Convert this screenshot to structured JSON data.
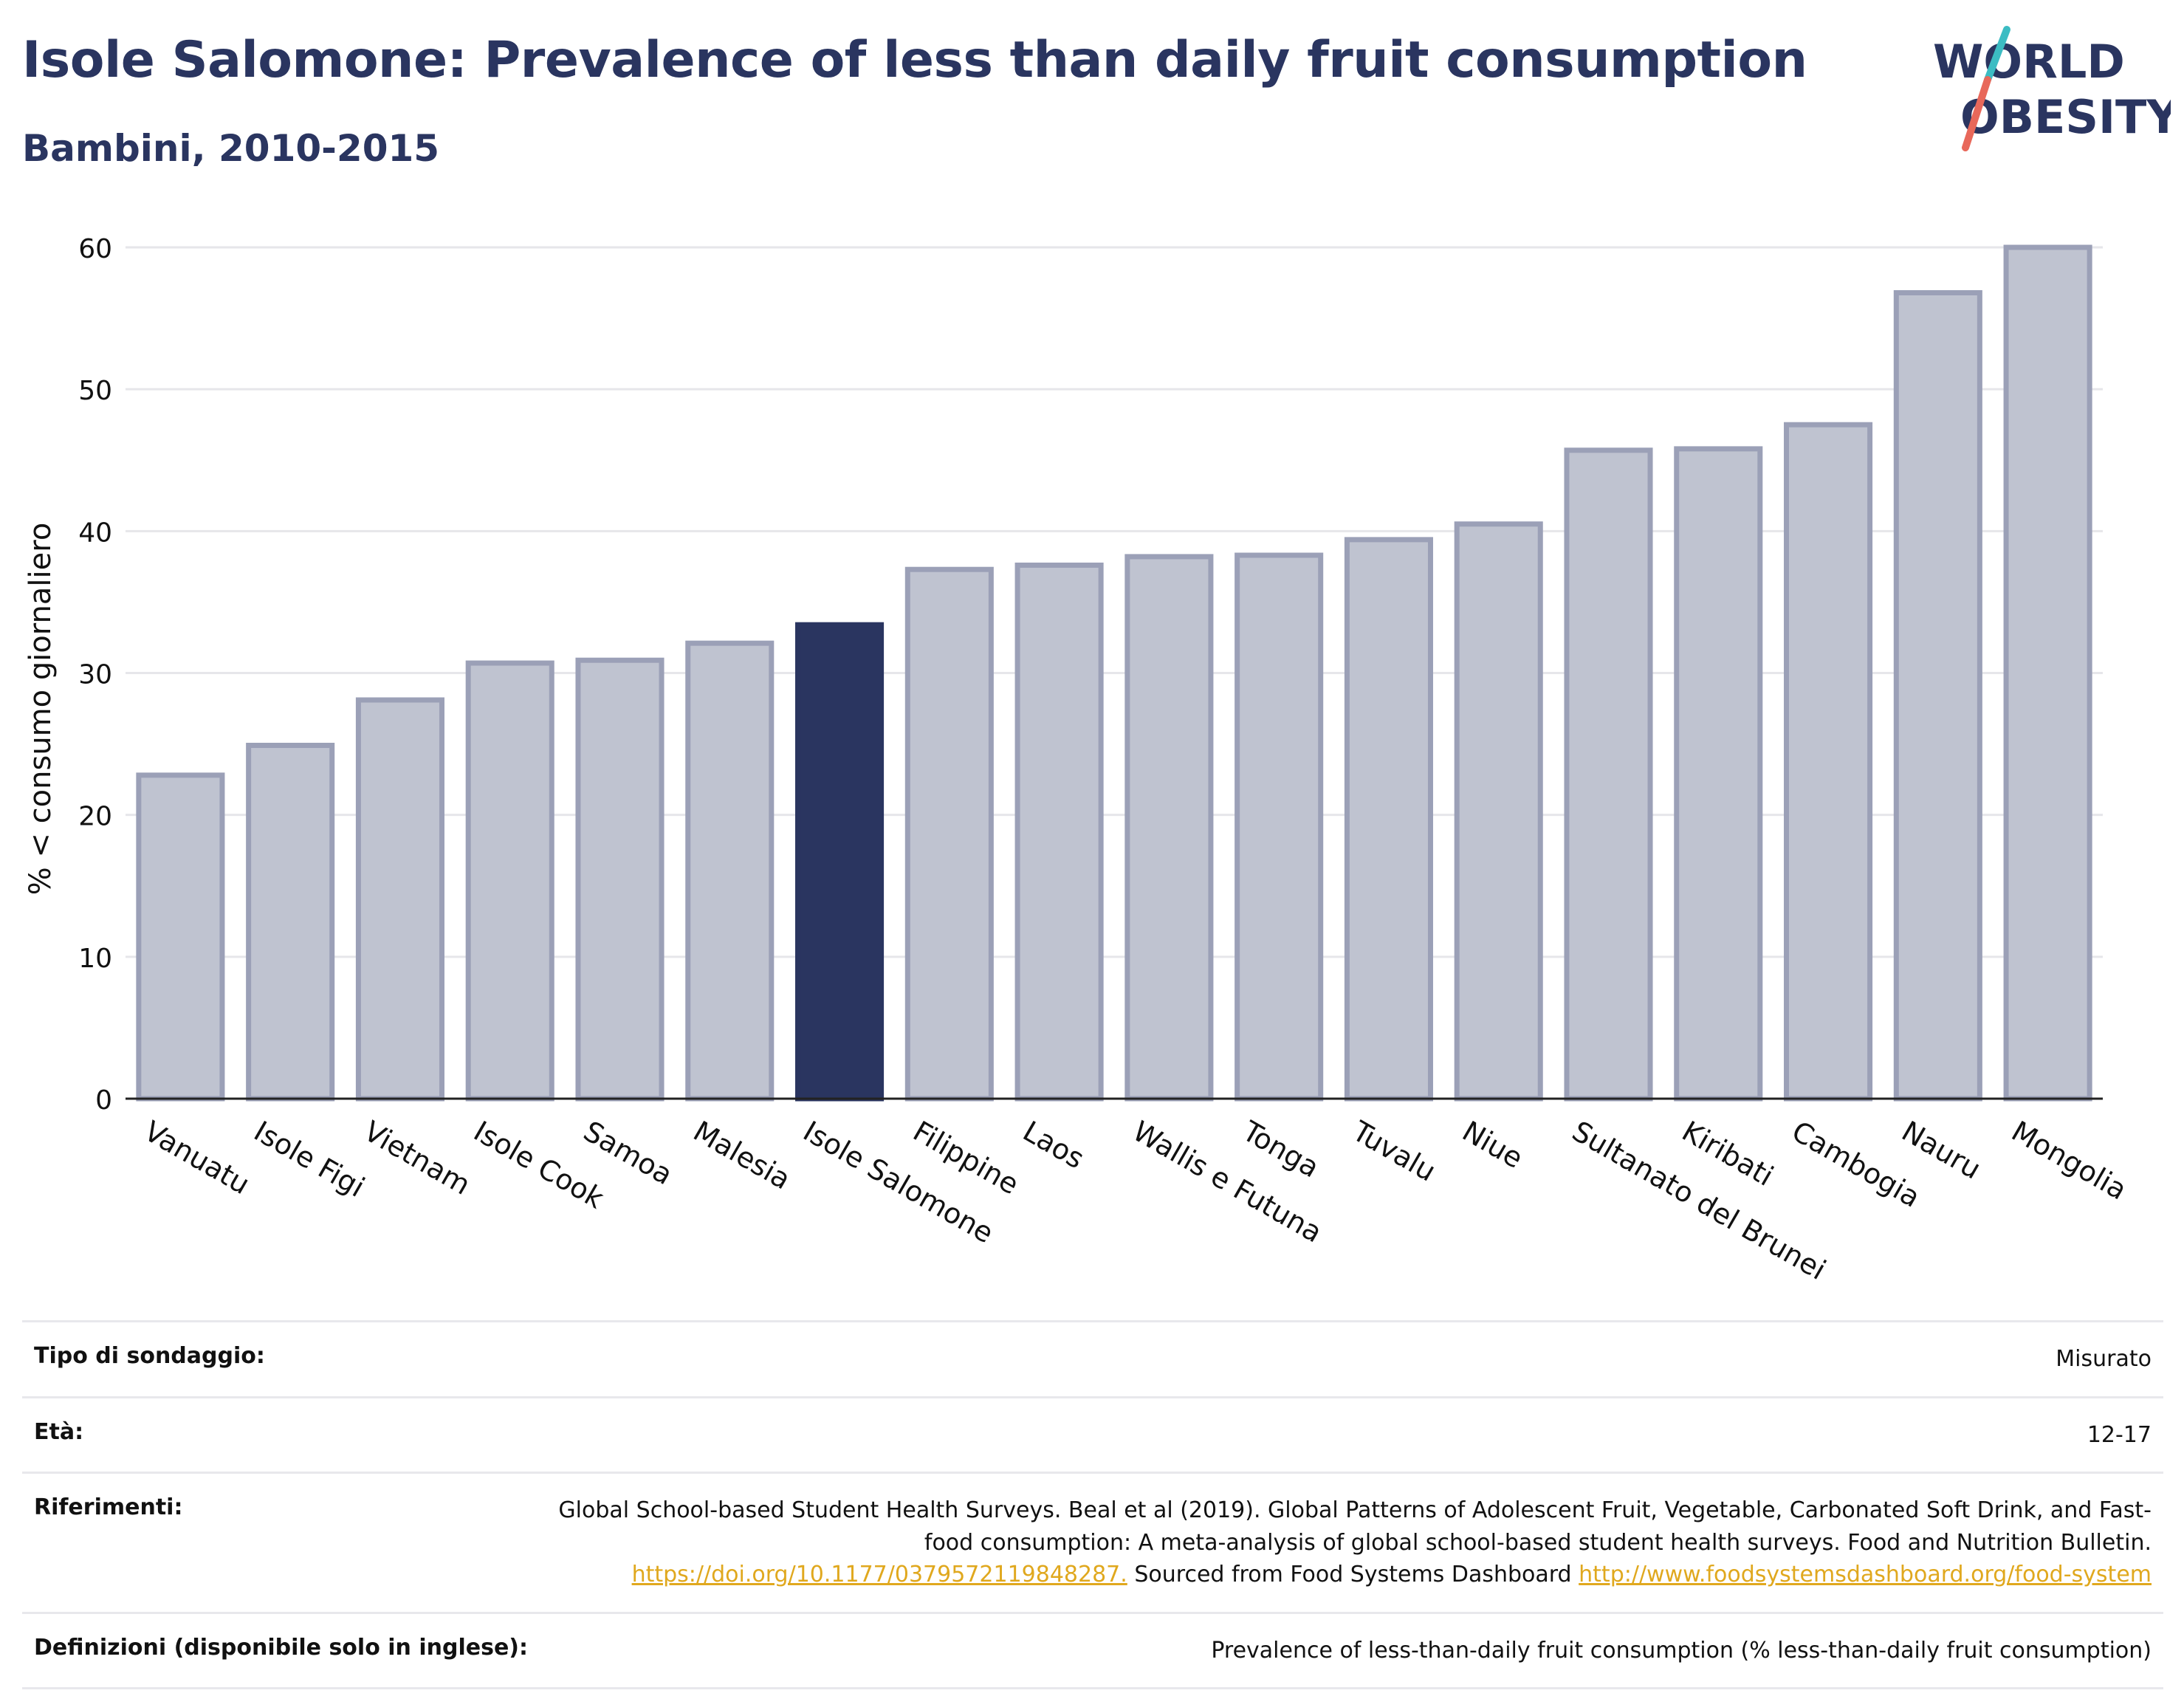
{
  "header": {
    "title": "Isole Salomone: Prevalence of less than daily fruit consumption",
    "subtitle": "Bambini, 2010-2015"
  },
  "logo": {
    "line1": "WORLD",
    "line2": "OBESITY"
  },
  "colors": {
    "highlight": "#2a3560",
    "bar": "#bfc3d0",
    "bar_border": "#9ba0b7",
    "accent_teal": "#3cbcc3",
    "accent_red": "#e8685a"
  },
  "chart_data": {
    "type": "bar",
    "ylabel": "% < consumo giornaliero",
    "ylim": [
      0,
      60
    ],
    "yticks": [
      0,
      10,
      20,
      30,
      40,
      50,
      60
    ],
    "grid": true,
    "highlight": "Isole Salomone",
    "categories": [
      "Vanuatu",
      "Isole Figi",
      "Vietnam",
      "Isole Cook",
      "Samoa",
      "Malesia",
      "Isole Salomone",
      "Filippine",
      "Laos",
      "Wallis e Futuna",
      "Tonga",
      "Tuvalu",
      "Niue",
      "Sultanato del Brunei",
      "Kiribati",
      "Cambogia",
      "Nauru",
      "Mongolia"
    ],
    "values": [
      22.8,
      24.9,
      28.1,
      30.7,
      30.9,
      32.1,
      33.4,
      37.3,
      37.6,
      38.2,
      38.3,
      39.4,
      40.5,
      45.7,
      45.8,
      47.5,
      56.8,
      60.0
    ]
  },
  "info": {
    "survey_label": "Tipo di sondaggio:",
    "survey_value": "Misurato",
    "age_label": "Età:",
    "age_value": "12-17",
    "refs_label": "Riferimenti:",
    "refs_text1": "Global School-based Student Health Surveys. Beal et al (2019). Global Patterns of Adolescent Fruit, Vegetable, Carbonated Soft Drink, and Fast-food consumption: A meta-analysis of global school-based student health surveys. Food and Nutrition Bulletin.",
    "refs_link1": "https://doi.org/10.1177/0379572119848287.",
    "refs_text2": "Sourced from Food Systems Dashboard",
    "refs_link2": "http://www.foodsystemsdashboard.org/food-system",
    "defs_label": "Definizioni (disponibile solo in inglese):",
    "defs_value": "Prevalence of less-than-daily fruit consumption (% less-than-daily fruit consumption)"
  }
}
